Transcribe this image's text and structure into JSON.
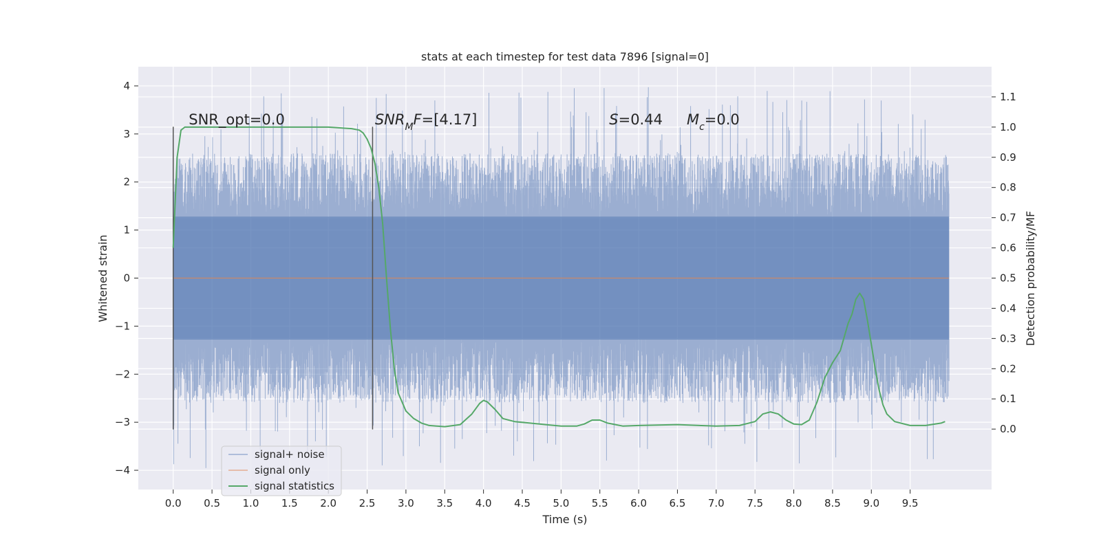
{
  "chart_data": {
    "type": "line",
    "title": "stats at each timestep for test data 7896 [signal=0]",
    "xlabel": "Time (s)",
    "ylabel": "Whitened strain",
    "y2label": "Detection probability/MF",
    "xlim": [
      -0.45,
      10.55
    ],
    "ylim": [
      -4.4,
      4.4
    ],
    "y2lim": [
      -0.2,
      1.2
    ],
    "x_ticks": [
      0.0,
      0.5,
      1.0,
      1.5,
      2.0,
      2.5,
      3.0,
      3.5,
      4.0,
      4.5,
      5.0,
      5.5,
      6.0,
      6.5,
      7.0,
      7.5,
      8.0,
      8.5,
      9.0,
      9.5
    ],
    "x_tick_labels": [
      "0.0",
      "0.5",
      "1.0",
      "1.5",
      "2.0",
      "2.5",
      "3.0",
      "3.5",
      "4.0",
      "4.5",
      "5.0",
      "5.5",
      "6.0",
      "6.5",
      "7.0",
      "7.5",
      "8.0",
      "8.5",
      "9.0",
      "9.5"
    ],
    "y_ticks": [
      -4,
      -3,
      -2,
      -1,
      0,
      1,
      2,
      3,
      4
    ],
    "y_tick_labels": [
      "−4",
      "−3",
      "−2",
      "−1",
      "0",
      "1",
      "2",
      "3",
      "4"
    ],
    "y2_ticks": [
      0.0,
      0.1,
      0.2,
      0.3,
      0.4,
      0.5,
      0.6,
      0.7,
      0.8,
      0.9,
      1.0,
      1.1
    ],
    "y2_tick_labels": [
      "0.0",
      "0.1",
      "0.2",
      "0.3",
      "0.4",
      "0.5",
      "0.6",
      "0.7",
      "0.8",
      "0.9",
      "1.0",
      "1.1"
    ],
    "grid": true,
    "legend_position": "lower-left",
    "series": [
      {
        "name": "signal+ noise",
        "color": "#4c72b0",
        "opacity": 0.5,
        "kind": "noise",
        "x_range": [
          0.0,
          10.0
        ],
        "core_amplitude": 1.28,
        "typical_peak": 2.6,
        "max_peak": 4.0,
        "min_trough": -4.0
      },
      {
        "name": "signal only",
        "color": "#dd8452",
        "x": [
          0.0,
          10.0
        ],
        "y": [
          0.0,
          0.0
        ]
      },
      {
        "name": "signal statistics",
        "color": "#55a868",
        "axis": "right",
        "x": [
          0.0,
          0.05,
          0.1,
          0.15,
          0.2,
          0.5,
          1.0,
          1.5,
          2.0,
          2.3,
          2.4,
          2.45,
          2.5,
          2.55,
          2.6,
          2.65,
          2.7,
          2.75,
          2.8,
          2.85,
          2.9,
          3.0,
          3.1,
          3.2,
          3.3,
          3.5,
          3.7,
          3.85,
          3.95,
          4.0,
          4.05,
          4.15,
          4.25,
          4.4,
          4.6,
          4.8,
          5.0,
          5.2,
          5.3,
          5.4,
          5.5,
          5.6,
          5.8,
          6.0,
          6.5,
          7.0,
          7.3,
          7.5,
          7.6,
          7.7,
          7.8,
          7.9,
          8.0,
          8.1,
          8.2,
          8.3,
          8.4,
          8.5,
          8.6,
          8.7,
          8.75,
          8.8,
          8.85,
          8.9,
          8.95,
          9.0,
          9.05,
          9.1,
          9.15,
          9.2,
          9.3,
          9.5,
          9.7,
          9.9,
          9.95
        ],
        "y": [
          0.6,
          0.9,
          0.99,
          1.0,
          1.0,
          1.0,
          1.0,
          1.0,
          1.0,
          0.995,
          0.99,
          0.98,
          0.96,
          0.93,
          0.88,
          0.8,
          0.68,
          0.5,
          0.33,
          0.2,
          0.12,
          0.06,
          0.035,
          0.02,
          0.012,
          0.008,
          0.015,
          0.05,
          0.085,
          0.095,
          0.09,
          0.065,
          0.035,
          0.025,
          0.02,
          0.015,
          0.01,
          0.01,
          0.017,
          0.03,
          0.03,
          0.02,
          0.01,
          0.012,
          0.015,
          0.01,
          0.012,
          0.025,
          0.05,
          0.057,
          0.05,
          0.03,
          0.017,
          0.015,
          0.03,
          0.09,
          0.17,
          0.22,
          0.26,
          0.35,
          0.38,
          0.43,
          0.45,
          0.43,
          0.36,
          0.28,
          0.2,
          0.13,
          0.08,
          0.05,
          0.025,
          0.012,
          0.012,
          0.02,
          0.025
        ]
      }
    ],
    "vertical_lines": [
      {
        "x": 0.0,
        "y_range": [
          -3.15,
          3.15
        ],
        "color": "#555555"
      },
      {
        "x": 2.57,
        "y_range": [
          -3.15,
          3.15
        ],
        "color": "#555555"
      }
    ],
    "annotations": [
      {
        "id": "snr-opt",
        "pieces": [
          {
            "t": "SNR_opt=0.0",
            "italic": false
          }
        ],
        "x": 0.2,
        "y": 3.2
      },
      {
        "id": "snr-mf",
        "pieces": [
          {
            "t": "SNR",
            "italic": true
          },
          {
            "t": "M",
            "italic": true,
            "sub": true
          },
          {
            "t": "F",
            "italic": true
          },
          {
            "t": "=[4.17]",
            "italic": false
          }
        ],
        "x": 2.6,
        "y": 3.2
      },
      {
        "id": "s-value",
        "pieces": [
          {
            "t": "S",
            "italic": true
          },
          {
            "t": "=0.44",
            "italic": false
          }
        ],
        "x": 5.62,
        "y": 3.2
      },
      {
        "id": "mc-value",
        "pieces": [
          {
            "t": "M",
            "italic": true
          },
          {
            "t": "c",
            "italic": true,
            "sub": true
          },
          {
            "t": "=0.0",
            "italic": false
          }
        ],
        "x": 6.62,
        "y": 3.2
      }
    ]
  }
}
